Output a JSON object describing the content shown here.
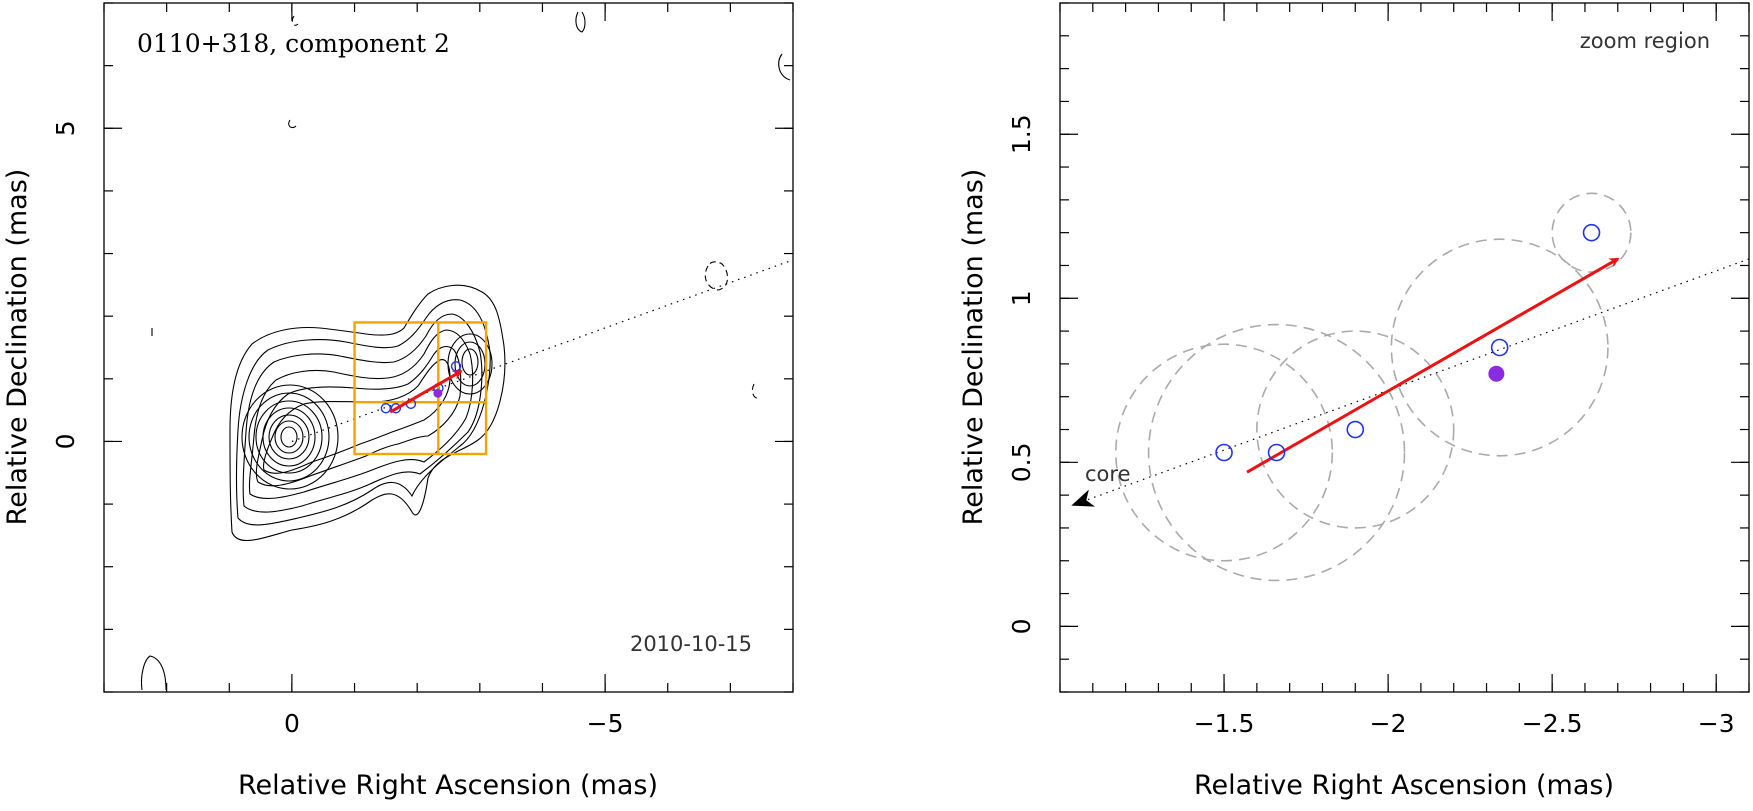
{
  "chart_data": [
    {
      "type": "scatter",
      "panel": "left",
      "title": "0110+318, component 2",
      "epoch_label": "2010-10-15",
      "xlabel": "Relative Right Ascension (mas)",
      "ylabel": "Relative Declination (mas)",
      "xlim": [
        3.0,
        -8.0
      ],
      "ylim": [
        -4.0,
        7.0
      ],
      "x_ticks": [
        0,
        -5
      ],
      "x_tick_labels": [
        "0",
        "−5"
      ],
      "y_ticks": [
        0,
        5
      ],
      "y_tick_labels": [
        "0",
        "5"
      ],
      "contour_peak": {
        "x": 0.0,
        "y": 0.0
      },
      "ridge_line": {
        "x": [
          0.0,
          -8.0
        ],
        "y": [
          0.0,
          2.9
        ]
      },
      "zoom_region": {
        "x": [
          -1.0,
          -3.1
        ],
        "y": [
          -0.2,
          1.9
        ]
      },
      "components": [
        {
          "x": -1.5,
          "y": 0.53,
          "filled": false
        },
        {
          "x": -1.66,
          "y": 0.53,
          "filled": false
        },
        {
          "x": -1.9,
          "y": 0.6,
          "filled": false
        },
        {
          "x": -2.34,
          "y": 0.85,
          "filled": false
        },
        {
          "x": -2.62,
          "y": 1.2,
          "filled": false
        },
        {
          "x": -2.33,
          "y": 0.77,
          "filled": true
        }
      ],
      "velocity_arrow": {
        "x": [
          -1.57,
          -2.7
        ],
        "y": [
          0.47,
          1.12
        ]
      }
    },
    {
      "type": "scatter",
      "panel": "right",
      "label": "zoom region",
      "core_label": "core",
      "xlabel": "Relative Right Ascension (mas)",
      "ylabel": "Relative Declination (mas)",
      "xlim": [
        -1.0,
        -3.1
      ],
      "ylim": [
        -0.2,
        1.9
      ],
      "x_ticks": [
        -1.5,
        -2,
        -2.5,
        -3
      ],
      "x_tick_labels": [
        "−1.5",
        "−2",
        "−2.5",
        "−3"
      ],
      "y_ticks": [
        0,
        0.5,
        1,
        1.5
      ],
      "y_tick_labels": [
        "0",
        "0.5",
        "1",
        "1.5"
      ],
      "components": [
        {
          "x": -1.5,
          "y": 0.53,
          "size_mas": 0.33,
          "filled": false
        },
        {
          "x": -1.66,
          "y": 0.53,
          "size_mas": 0.39,
          "filled": false
        },
        {
          "x": -1.9,
          "y": 0.6,
          "size_mas": 0.3,
          "filled": false
        },
        {
          "x": -2.34,
          "y": 0.85,
          "size_mas": 0.33,
          "filled": false
        },
        {
          "x": -2.62,
          "y": 1.2,
          "size_mas": 0.12,
          "filled": false
        },
        {
          "x": -2.33,
          "y": 0.77,
          "size_mas": 0.0,
          "filled": true
        }
      ],
      "velocity_arrow": {
        "x": [
          -1.57,
          -2.7
        ],
        "y": [
          0.47,
          1.12
        ]
      },
      "core_direction": {
        "x": [
          -3.1,
          -1.04
        ],
        "y": [
          1.12,
          0.37
        ]
      }
    }
  ],
  "colors": {
    "component_open": "#2233ee",
    "component_filled": "#8a2be2",
    "velocity_arrow": "#ee1111",
    "zoom_box": "#f0a500",
    "fit_circle": "#aaaaaa"
  }
}
